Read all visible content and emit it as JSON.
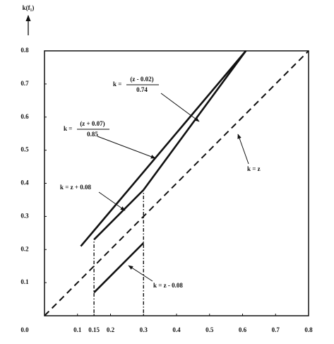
{
  "chart_data": {
    "type": "line",
    "y_label": "k(f₁)",
    "xlim": [
      0,
      0.8
    ],
    "ylim": [
      0,
      0.8
    ],
    "xticks": [
      0.1,
      0.15,
      0.2,
      0.3,
      0.4,
      0.5,
      0.6,
      0.7,
      0.8
    ],
    "yticks": [
      {
        "value": 0,
        "label": "0.0"
      },
      0.1,
      0.2,
      0.3,
      0.4,
      0.5,
      0.6,
      0.7,
      0.8
    ],
    "series": [
      {
        "name": "k = z",
        "color": "#111",
        "dashed": true,
        "x": [
          0,
          0.8
        ],
        "values": [
          0,
          0.8
        ]
      },
      {
        "name": "k = (z + 0.07) / 0.85",
        "color": "#111",
        "x": [
          0.11,
          0.61
        ],
        "values": [
          0.21,
          0.8
        ]
      },
      {
        "name": "k = (z - 0.02) / 0.74",
        "color": "#111",
        "x": [
          0.3,
          0.61
        ],
        "values": [
          0.38,
          0.8
        ]
      },
      {
        "name": "k = z + 0.08",
        "color": "#111",
        "x": [
          0.15,
          0.3
        ],
        "values": [
          0.23,
          0.38
        ]
      },
      {
        "name": "k = z - 0.08",
        "color": "#111",
        "x": [
          0.15,
          0.3
        ],
        "values": [
          0.07,
          0.22
        ]
      }
    ],
    "annotations": [
      {
        "text": "k =",
        "numerator": "(z - 0.02)",
        "denominator": "0.74"
      },
      {
        "text": "k =",
        "numerator": "(z + 0.07)",
        "denominator": "0.85"
      },
      {
        "text": "k = z + 0.08"
      },
      {
        "text": "k = z"
      },
      {
        "text": "k = z - 0.08"
      }
    ]
  }
}
